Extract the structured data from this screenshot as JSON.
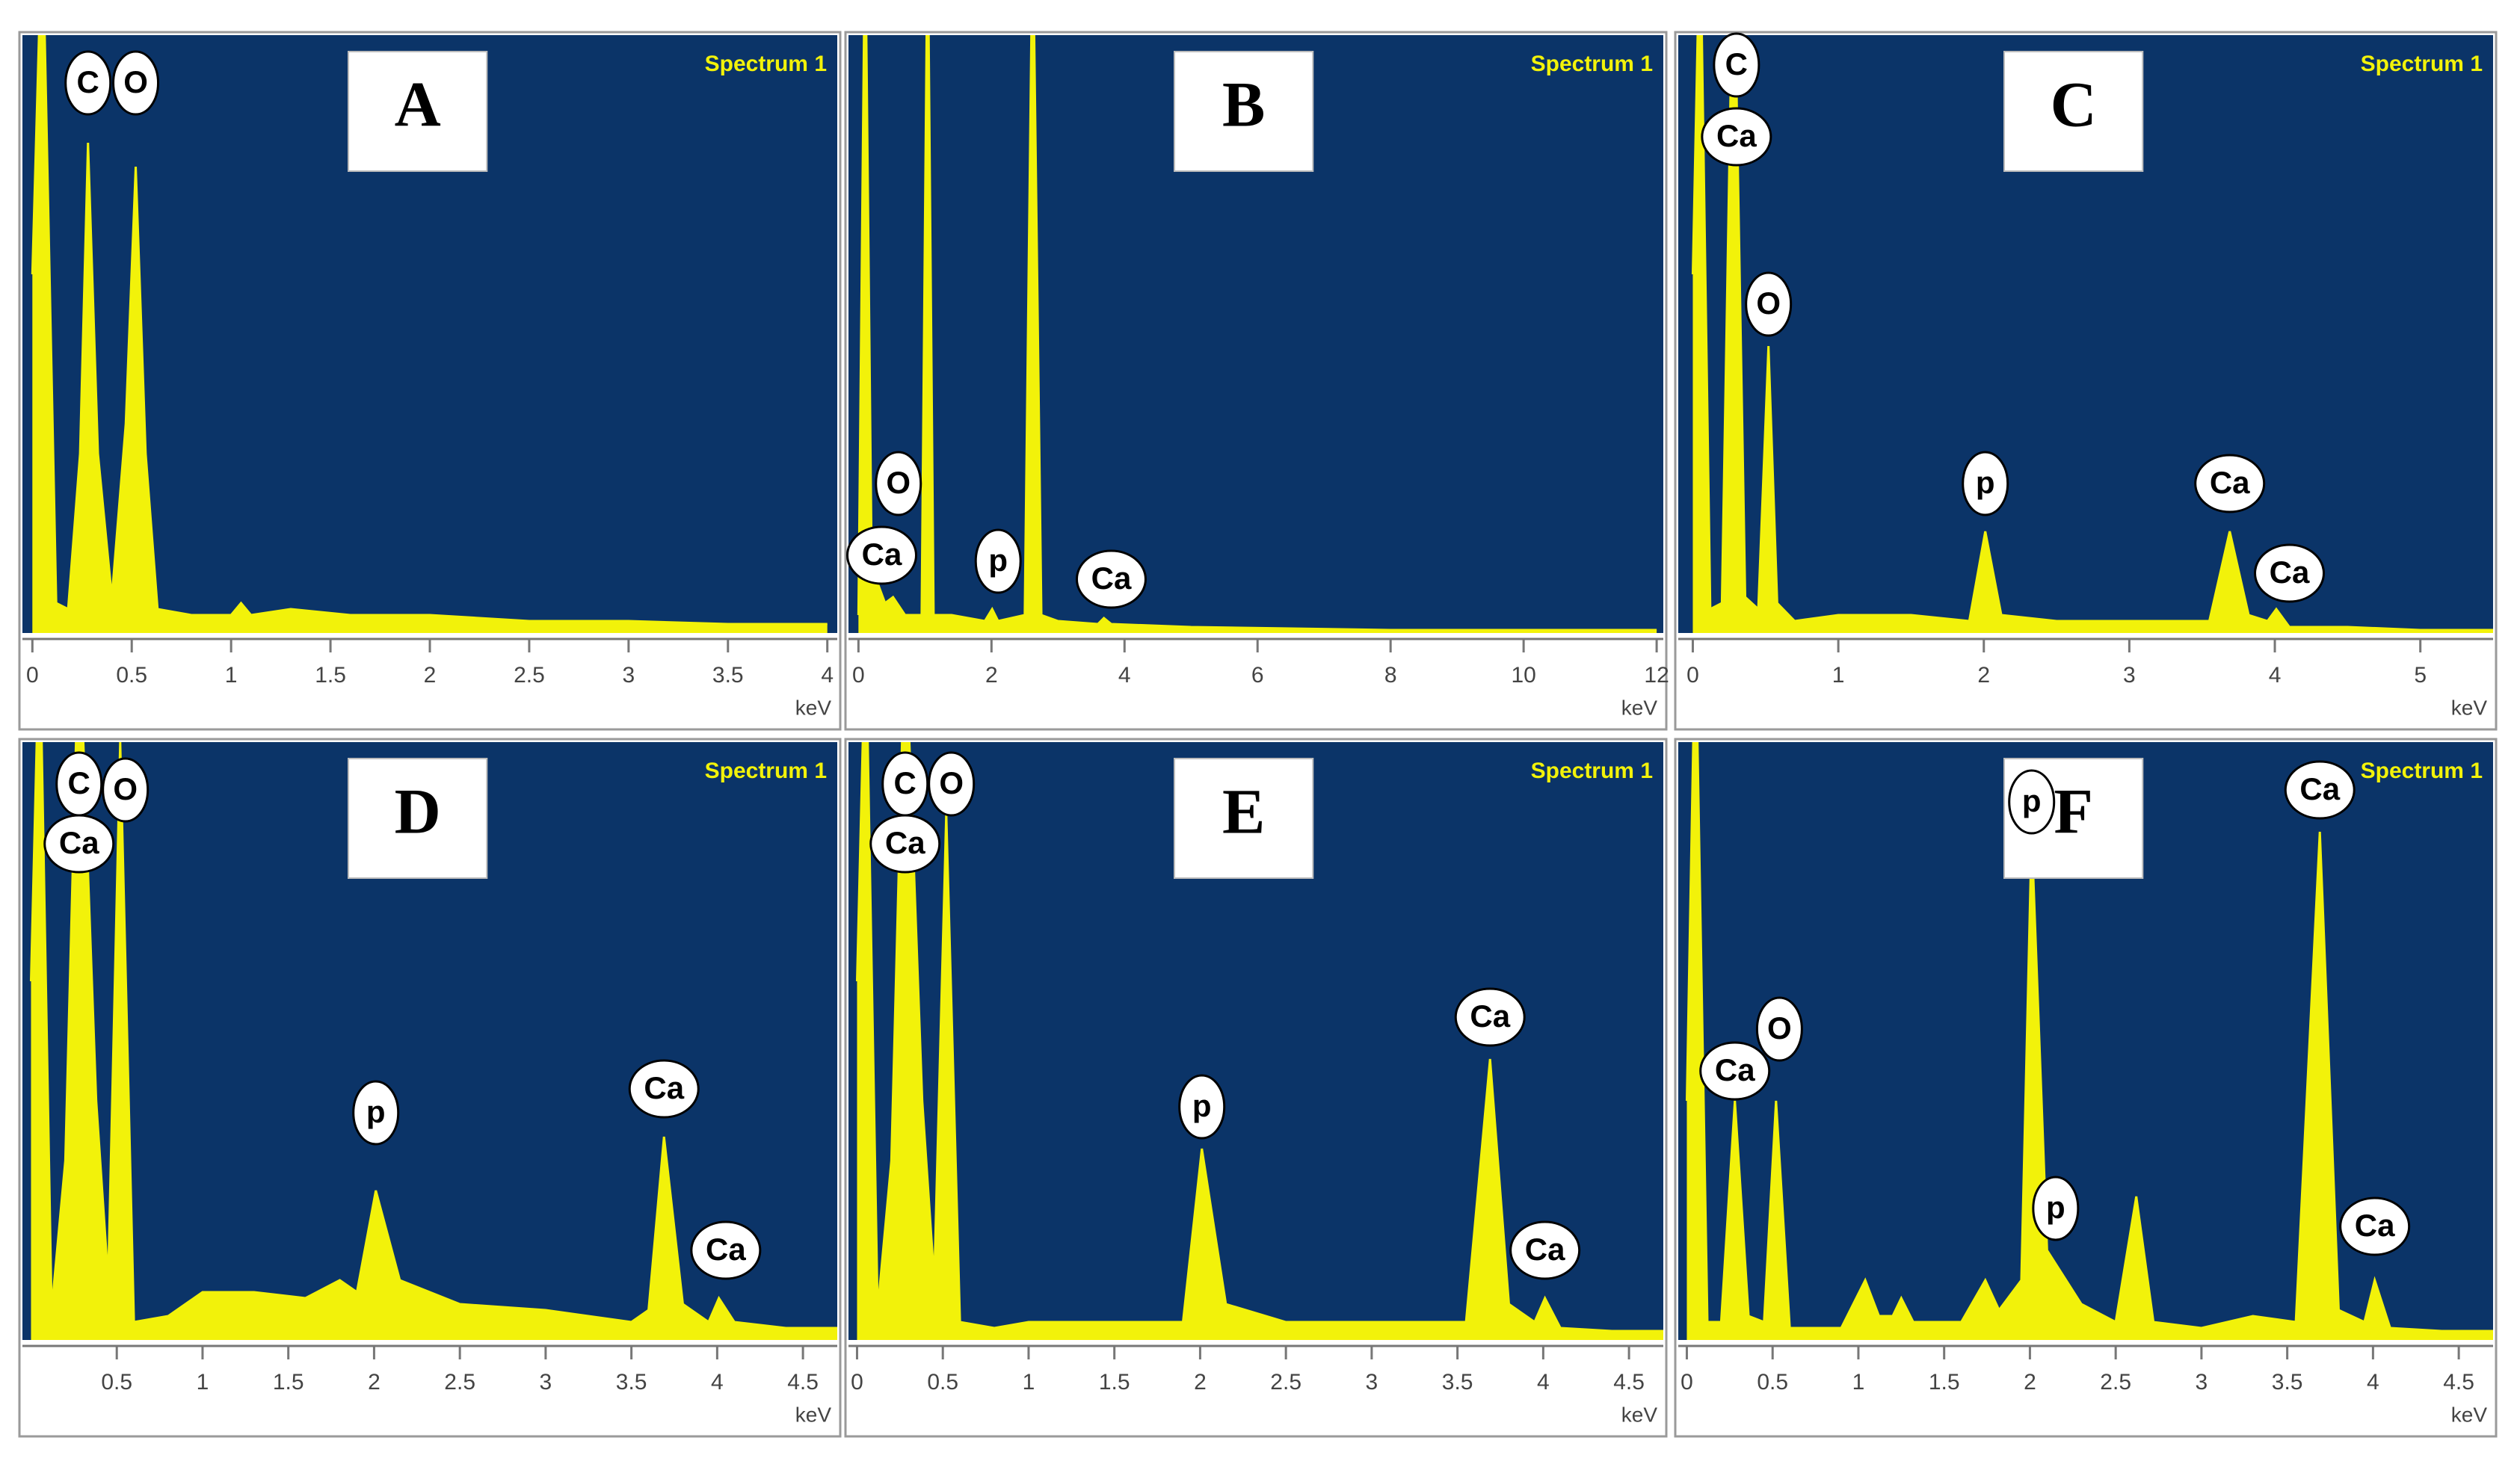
{
  "chart_data": [
    {
      "type": "area",
      "panel": "A",
      "subtitle": "Spectrum 1",
      "xlabel": "keV",
      "color": "#f2f20a",
      "background": "#0b3468",
      "xlim": [
        -0.05,
        4.05
      ],
      "ylim": [
        0,
        100
      ],
      "xticks": [
        0,
        0.5,
        1,
        1.5,
        2,
        2.5,
        3,
        3.5,
        4
      ],
      "x": [
        0,
        0.05,
        0.12,
        0.18,
        0.24,
        0.28,
        0.33,
        0.4,
        0.47,
        0.52,
        0.57,
        0.63,
        0.8,
        1.0,
        1.05,
        1.1,
        1.3,
        1.6,
        2.0,
        2.5,
        3.0,
        3.5,
        4.0
      ],
      "values": [
        60,
        120,
        5,
        4,
        30,
        82,
        30,
        6,
        35,
        78,
        30,
        4,
        3,
        3,
        5,
        3,
        4,
        3,
        3,
        2,
        2,
        1.5,
        1.5
      ],
      "annotations": [
        {
          "text": "C",
          "x": 0.28,
          "y": 92
        },
        {
          "text": "O",
          "x": 0.52,
          "y": 92
        }
      ]
    },
    {
      "type": "area",
      "panel": "B",
      "subtitle": "Spectrum 1",
      "xlabel": "keV",
      "color": "#f2f20a",
      "background": "#0b3468",
      "xlim": [
        -0.15,
        12.1
      ],
      "ylim": [
        0,
        100
      ],
      "xticks": [
        0,
        2,
        4,
        6,
        8,
        10,
        12
      ],
      "x": [
        0,
        0.1,
        0.2,
        0.3,
        0.4,
        0.52,
        0.7,
        0.95,
        1.04,
        1.13,
        1.4,
        1.9,
        2.01,
        2.1,
        2.5,
        2.62,
        2.75,
        3.0,
        3.6,
        3.69,
        3.8,
        5,
        8,
        12
      ],
      "values": [
        3,
        120,
        10,
        8,
        5,
        6,
        3,
        3,
        120,
        3,
        3,
        2,
        4,
        2,
        3,
        120,
        3,
        2,
        1.5,
        2.5,
        1.5,
        1,
        0.5,
        0.5
      ],
      "annotations": [
        {
          "text": "Ca",
          "x": 0.35,
          "y": 13
        },
        {
          "text": "O",
          "x": 0.6,
          "y": 25
        },
        {
          "text": "p",
          "x": 2.1,
          "y": 12
        },
        {
          "text": "Ca",
          "x": 3.8,
          "y": 9
        }
      ]
    },
    {
      "type": "area",
      "panel": "C",
      "subtitle": "Spectrum 1",
      "xlabel": "keV",
      "color": "#f2f20a",
      "background": "#0b3468",
      "xlim": [
        -0.1,
        5.5
      ],
      "ylim": [
        0,
        100
      ],
      "xticks": [
        0,
        1,
        2,
        3,
        4,
        5
      ],
      "x": [
        0,
        0.05,
        0.12,
        0.2,
        0.28,
        0.36,
        0.45,
        0.52,
        0.58,
        0.7,
        1.0,
        1.5,
        1.9,
        2.01,
        2.12,
        2.5,
        3.0,
        3.55,
        3.69,
        3.82,
        3.95,
        4.01,
        4.1,
        4.5,
        5.0,
        5.5
      ],
      "values": [
        60,
        120,
        4,
        5,
        120,
        6,
        4,
        48,
        5,
        2,
        3,
        3,
        2,
        17,
        3,
        2,
        2,
        2,
        17,
        3,
        2,
        4,
        1,
        1,
        0.5,
        0.5
      ],
      "annotations": [
        {
          "text": "C",
          "x": 0.3,
          "y": 95
        },
        {
          "text": "Ca",
          "x": 0.3,
          "y": 83
        },
        {
          "text": "O",
          "x": 0.52,
          "y": 55
        },
        {
          "text": "p",
          "x": 2.01,
          "y": 25
        },
        {
          "text": "Ca",
          "x": 3.69,
          "y": 25
        },
        {
          "text": "Ca",
          "x": 4.1,
          "y": 10
        }
      ]
    },
    {
      "type": "area",
      "panel": "D",
      "subtitle": "Spectrum 1",
      "xlabel": "keV",
      "color": "#f2f20a",
      "background": "#0b3468",
      "xlim": [
        -0.05,
        4.7
      ],
      "ylim": [
        0,
        100
      ],
      "xticks": [
        0.5,
        1,
        1.5,
        2,
        2.5,
        3,
        3.5,
        4,
        4.5
      ],
      "x": [
        0,
        0.05,
        0.12,
        0.2,
        0.28,
        0.38,
        0.45,
        0.52,
        0.6,
        0.8,
        1.0,
        1.3,
        1.6,
        1.8,
        1.9,
        2.01,
        2.15,
        2.5,
        3.0,
        3.5,
        3.6,
        3.69,
        3.8,
        3.95,
        4.01,
        4.1,
        4.4,
        4.7
      ],
      "values": [
        60,
        120,
        5,
        30,
        120,
        40,
        10,
        100,
        3,
        4,
        8,
        8,
        7,
        10,
        8,
        25,
        10,
        6,
        5,
        3,
        5,
        34,
        6,
        3,
        7,
        3,
        2,
        2
      ],
      "annotations": [
        {
          "text": "C",
          "x": 0.28,
          "y": 93
        },
        {
          "text": "Ca",
          "x": 0.28,
          "y": 83
        },
        {
          "text": "O",
          "x": 0.55,
          "y": 92
        },
        {
          "text": "p",
          "x": 2.01,
          "y": 38
        },
        {
          "text": "Ca",
          "x": 3.69,
          "y": 42
        },
        {
          "text": "Ca",
          "x": 4.05,
          "y": 15
        }
      ]
    },
    {
      "type": "area",
      "panel": "E",
      "subtitle": "Spectrum 1",
      "xlabel": "keV",
      "color": "#f2f20a",
      "background": "#0b3468",
      "xlim": [
        -0.05,
        4.7
      ],
      "ylim": [
        0,
        100
      ],
      "xticks": [
        0,
        0.5,
        1,
        1.5,
        2,
        2.5,
        3,
        3.5,
        4,
        4.5
      ],
      "x": [
        0,
        0.05,
        0.12,
        0.2,
        0.28,
        0.38,
        0.45,
        0.52,
        0.6,
        0.8,
        1.0,
        1.5,
        1.9,
        2.01,
        2.15,
        2.5,
        3.0,
        3.55,
        3.69,
        3.8,
        3.95,
        4.01,
        4.1,
        4.4,
        4.7
      ],
      "values": [
        60,
        120,
        5,
        30,
        120,
        40,
        10,
        88,
        3,
        2,
        3,
        3,
        3,
        32,
        6,
        3,
        3,
        3,
        47,
        6,
        3,
        7,
        2,
        1.5,
        1.5
      ],
      "annotations": [
        {
          "text": "C",
          "x": 0.28,
          "y": 93
        },
        {
          "text": "Ca",
          "x": 0.28,
          "y": 83
        },
        {
          "text": "O",
          "x": 0.55,
          "y": 93
        },
        {
          "text": "p",
          "x": 2.01,
          "y": 39
        },
        {
          "text": "Ca",
          "x": 3.69,
          "y": 54
        },
        {
          "text": "Ca",
          "x": 4.01,
          "y": 15
        }
      ]
    },
    {
      "type": "area",
      "panel": "F",
      "subtitle": "Spectrum 1",
      "xlabel": "keV",
      "color": "#f2f20a",
      "background": "#0b3468",
      "xlim": [
        -0.05,
        4.7
      ],
      "ylim": [
        0,
        100
      ],
      "xticks": [
        0,
        0.5,
        1,
        1.5,
        2,
        2.5,
        3,
        3.5,
        4,
        4.5
      ],
      "x": [
        0,
        0.05,
        0.12,
        0.2,
        0.28,
        0.36,
        0.45,
        0.52,
        0.6,
        0.9,
        1.04,
        1.12,
        1.2,
        1.25,
        1.32,
        1.6,
        1.74,
        1.82,
        1.95,
        2.01,
        2.1,
        2.3,
        2.5,
        2.62,
        2.72,
        3.0,
        3.3,
        3.55,
        3.69,
        3.8,
        3.95,
        4.01,
        4.1,
        4.4,
        4.7
      ],
      "values": [
        40,
        120,
        3,
        3,
        40,
        4,
        3,
        40,
        2,
        2,
        10,
        4,
        4,
        7,
        3,
        3,
        10,
        5,
        10,
        85,
        15,
        6,
        3,
        24,
        3,
        2,
        4,
        3,
        85,
        5,
        3,
        10,
        2,
        1.5,
        1.5
      ],
      "annotations": [
        {
          "text": "Ca",
          "x": 0.28,
          "y": 45
        },
        {
          "text": "O",
          "x": 0.54,
          "y": 52
        },
        {
          "text": "p",
          "x": 2.01,
          "y": 90
        },
        {
          "text": "p",
          "x": 2.15,
          "y": 22
        },
        {
          "text": "Ca",
          "x": 3.69,
          "y": 92
        },
        {
          "text": "Ca",
          "x": 4.01,
          "y": 19
        }
      ]
    }
  ]
}
